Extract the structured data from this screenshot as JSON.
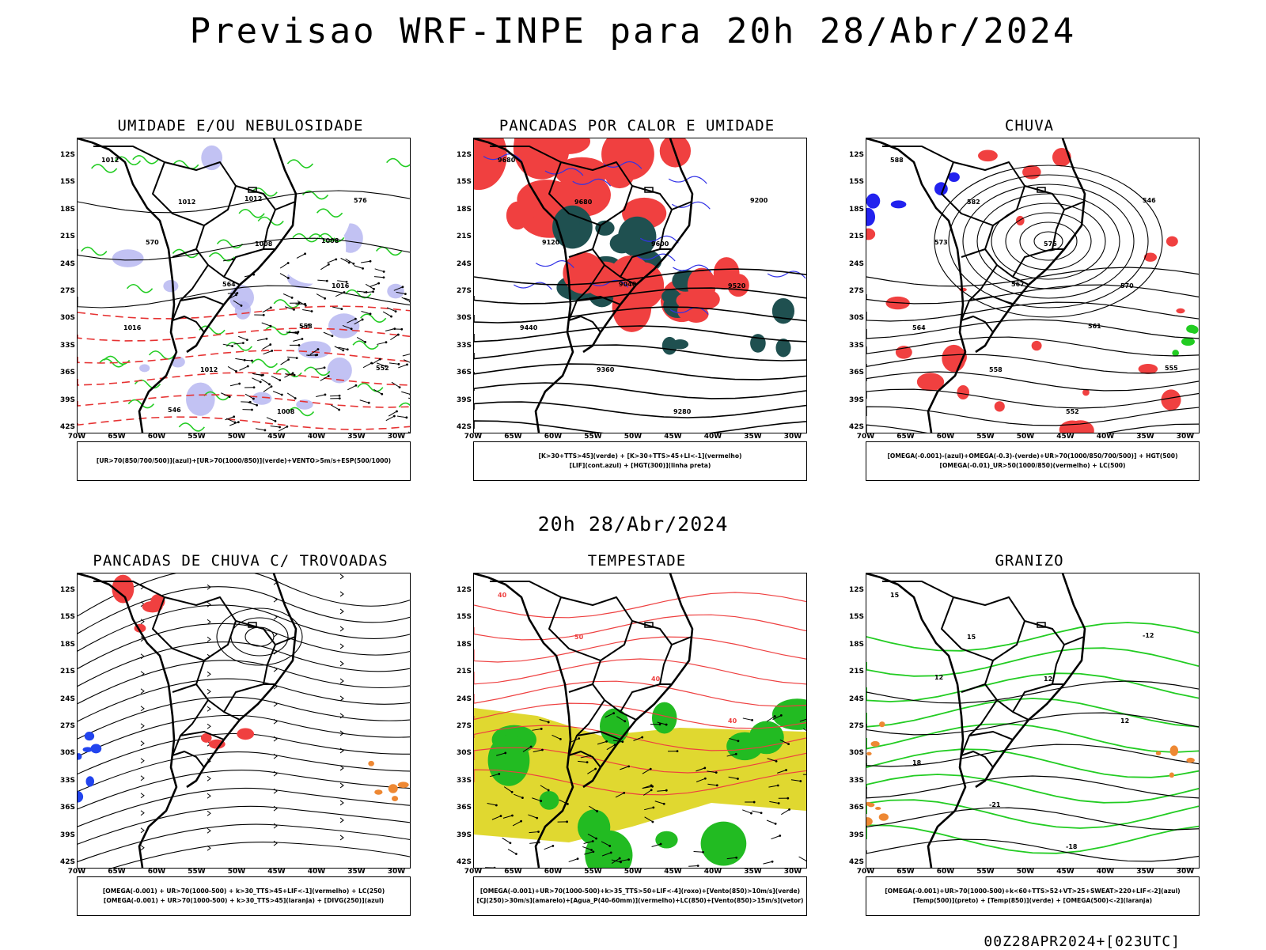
{
  "header": {
    "title": "Previsao WRF-INPE  para 20h 28/Abr/2024",
    "mid_time": "20h 28/Abr/2024",
    "footer_stamp": "00Z28APR2024+[023UTC]"
  },
  "axes": {
    "lat_labels": [
      "12S",
      "15S",
      "18S",
      "21S",
      "24S",
      "27S",
      "30S",
      "33S",
      "36S",
      "39S",
      "42S"
    ],
    "lon_labels": [
      "70W",
      "65W",
      "60W",
      "55W",
      "50W",
      "45W",
      "40W",
      "35W",
      "30W"
    ]
  },
  "panels": [
    {
      "id": "umidade",
      "title": "UMIDADE E/OU NEBULOSIDADE",
      "legend": [
        "[UR>70(850/700/500)](azul)+[UR>70(1000/850)](verde)+VENTO>5m/s+ESP(500/1000)"
      ],
      "contour_labels": [
        "1012",
        "1012",
        "1008",
        "1016",
        "1016",
        "1012",
        "1008",
        "576",
        "570",
        "564",
        "558",
        "552",
        "546",
        "1012",
        "1008"
      ],
      "colors": {
        "fill_primary": "#b3b3f0",
        "fill_secondary": "#22cc22",
        "lines": "#e63232"
      }
    },
    {
      "id": "pancadas-calor",
      "title": "PANCADAS POR CALOR E UMIDADE",
      "legend": [
        "[K>30+TTS>45](verde) + [K>30+TTS>45+LI<-1](vermelho)",
        "[LIF](cont.azul) + [HGT(300)](linha preta)"
      ],
      "contour_labels": [
        "9680",
        "9680",
        "9600",
        "9520",
        "9440",
        "9360",
        "9280",
        "9200",
        "9120",
        "9040"
      ],
      "colors": {
        "fill_primary": "#f04040",
        "fill_secondary": "#1f5050",
        "lines": "#3232e6"
      }
    },
    {
      "id": "chuva",
      "title": "CHUVA",
      "legend": [
        "[OMEGA(-0.001)-(azul)+OMEGA(-0.3)-(verde)+UR>70(1000/850/700/500)] + HGT(500)",
        "[OMEGA(-0.01)_UR>50(1000/850)(vermelho) + LC(500)"
      ],
      "contour_labels": [
        "588",
        "582",
        "576",
        "570",
        "564",
        "558",
        "552",
        "546",
        "573",
        "567",
        "561",
        "555"
      ],
      "colors": {
        "fill_primary": "#f04040",
        "fill_secondary": "#2222ee",
        "lines": "#000000"
      }
    },
    {
      "id": "trovoadas",
      "title": "PANCADAS DE CHUVA C/ TROVOADAS",
      "legend": [
        "[OMEGA(-0.001) + UR>70(1000-500) + k>30_TTS>45+LIF<-1](vermelho) + LC(250)",
        "[OMEGA(-0.001) + UR>70(1000-500) + k>30_TTS>45](laranja) + [DIVG(250)](azul)"
      ],
      "contour_labels": [],
      "colors": {
        "fill_primary": "#f04040",
        "fill_secondary": "#2244ee",
        "lines": "#000000"
      }
    },
    {
      "id": "tempestade",
      "title": "TEMPESTADE",
      "legend": [
        "[OMEGA(-0.001)+UR>70(1000-500)+k>35_TTS>50+LIF<-4](roxo)+[Vento(850)>10m/s](verde)",
        "[CJ(250)>30m/s](amarelo)+[Agua_P(40-60mm)](vermelho)+LC(850)+[Vento(850)>15m/s](vetor)"
      ],
      "contour_labels": [
        "40",
        "50",
        "40",
        "40"
      ],
      "colors": {
        "fill_primary": "#e0d830",
        "fill_secondary": "#22bb22",
        "lines": "#ee4040"
      }
    },
    {
      "id": "granizo",
      "title": "GRANIZO",
      "legend": [
        "[OMEGA(-0.001)+UR>70(1000-500)+k<60+TTS>52+VT>25+SWEAT>220+LIF<-2](azul)",
        "[Temp(500)](preto) + [Temp(850)](verde) + [OMEGA(500)<-2](laranja)"
      ],
      "contour_labels": [
        "15",
        "15",
        "12",
        "12",
        "18",
        "-21",
        "-18",
        "-12",
        "12"
      ],
      "colors": {
        "fill_primary": "#ee8833",
        "fill_secondary": "#22cc22",
        "lines": "#000000"
      }
    }
  ]
}
